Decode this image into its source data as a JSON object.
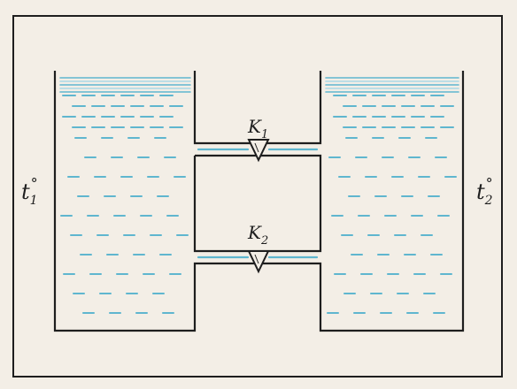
{
  "labels": {
    "t1": {
      "main": "t",
      "sup": "°",
      "sub": "1"
    },
    "t2": {
      "main": "t",
      "sup": "°",
      "sub": "2"
    },
    "k1": {
      "main": "K",
      "sub": "1"
    },
    "k2": {
      "main": "K",
      "sub": "2"
    }
  },
  "colors": {
    "paper": "#f3eee6",
    "ink": "#1e1e1e",
    "water": "#5fb6cf",
    "water_light": "#a9d8e6"
  }
}
